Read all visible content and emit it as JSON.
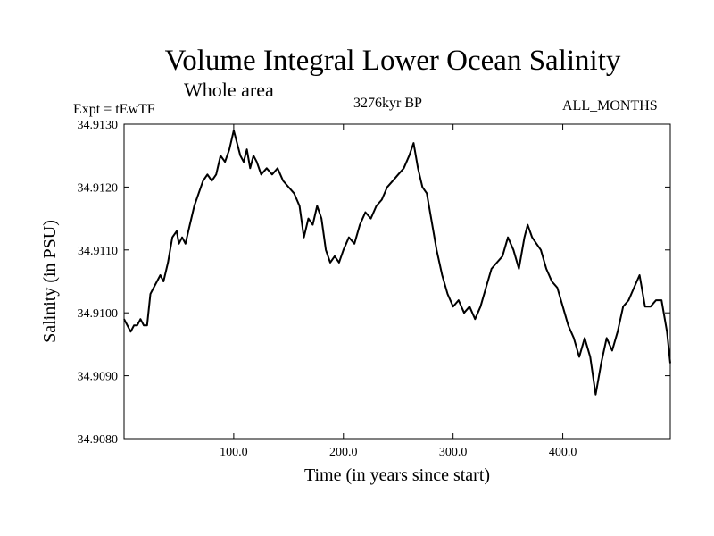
{
  "header": {
    "title": "Volume Integral Lower Ocean Salinity",
    "subtitle": "Whole area",
    "expt": "Expt = tEwTF",
    "period": "3276kyr BP",
    "months": "ALL_MONTHS"
  },
  "chart_data": {
    "type": "line",
    "title": "Volume Integral Lower Ocean Salinity",
    "xlabel": "Time (in years since start)",
    "ylabel": "Salinity (in PSU)",
    "xlim": [
      0,
      498
    ],
    "ylim": [
      34.908,
      34.913
    ],
    "xticks": [
      100,
      200,
      300,
      400
    ],
    "xtick_labels": [
      "100.0",
      "200.0",
      "300.0",
      "400.0"
    ],
    "yticks": [
      34.908,
      34.909,
      34.91,
      34.911,
      34.912,
      34.913
    ],
    "ytick_labels": [
      "34.9080",
      "34.9090",
      "34.9100",
      "34.9110",
      "34.9120",
      "34.9130"
    ],
    "series": [
      {
        "name": "salinity",
        "color": "#000000",
        "x": [
          0,
          3,
          6,
          9,
          12,
          15,
          18,
          21,
          24,
          27,
          30,
          33,
          36,
          40,
          44,
          48,
          50,
          53,
          56,
          60,
          64,
          68,
          72,
          76,
          80,
          84,
          88,
          92,
          96,
          100,
          103,
          106,
          109,
          112,
          115,
          118,
          121,
          125,
          130,
          135,
          140,
          145,
          150,
          155,
          160,
          164,
          168,
          172,
          176,
          180,
          184,
          188,
          192,
          196,
          200,
          205,
          210,
          215,
          220,
          225,
          230,
          235,
          240,
          245,
          250,
          255,
          260,
          264,
          268,
          272,
          276,
          280,
          285,
          290,
          295,
          300,
          305,
          310,
          315,
          320,
          325,
          330,
          335,
          340,
          345,
          350,
          355,
          360,
          365,
          368,
          372,
          376,
          380,
          385,
          390,
          395,
          400,
          405,
          410,
          415,
          420,
          425,
          430,
          435,
          440,
          445,
          450,
          455,
          460,
          465,
          470,
          475,
          480,
          485,
          490,
          495,
          498
        ],
        "y": [
          34.9099,
          34.9098,
          34.9097,
          34.9098,
          34.9098,
          34.9099,
          34.9098,
          34.9098,
          34.9103,
          34.9104,
          34.9105,
          34.9106,
          34.9105,
          34.9108,
          34.9112,
          34.9113,
          34.9111,
          34.9112,
          34.9111,
          34.9114,
          34.9117,
          34.9119,
          34.9121,
          34.9122,
          34.9121,
          34.9122,
          34.9125,
          34.9124,
          34.9126,
          34.9129,
          34.9127,
          34.9125,
          34.9124,
          34.9126,
          34.9123,
          34.9125,
          34.9124,
          34.9122,
          34.9123,
          34.9122,
          34.9123,
          34.9121,
          34.912,
          34.9119,
          34.9117,
          34.9112,
          34.9115,
          34.9114,
          34.9117,
          34.9115,
          34.911,
          34.9108,
          34.9109,
          34.9108,
          34.911,
          34.9112,
          34.9111,
          34.9114,
          34.9116,
          34.9115,
          34.9117,
          34.9118,
          34.912,
          34.9121,
          34.9122,
          34.9123,
          34.9125,
          34.9127,
          34.9123,
          34.912,
          34.9119,
          34.9115,
          34.911,
          34.9106,
          34.9103,
          34.9101,
          34.9102,
          34.91,
          34.9101,
          34.9099,
          34.9101,
          34.9104,
          34.9107,
          34.9108,
          34.9109,
          34.9112,
          34.911,
          34.9107,
          34.9112,
          34.9114,
          34.9112,
          34.9111,
          34.911,
          34.9107,
          34.9105,
          34.9104,
          34.9101,
          34.9098,
          34.9096,
          34.9093,
          34.9096,
          34.9093,
          34.9087,
          34.9092,
          34.9096,
          34.9094,
          34.9097,
          34.9101,
          34.9102,
          34.9104,
          34.9106,
          34.9101,
          34.9101,
          34.9102,
          34.9102,
          34.9097,
          34.9092
        ]
      }
    ]
  }
}
